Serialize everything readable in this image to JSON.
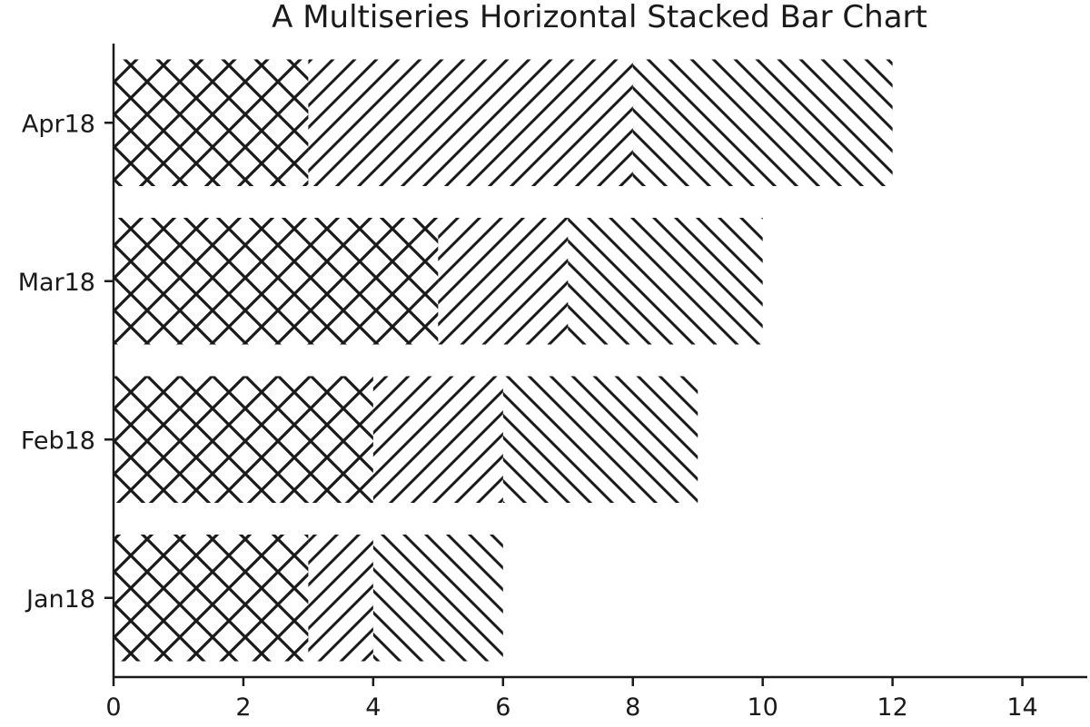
{
  "chart_data": {
    "type": "bar",
    "orientation": "horizontal",
    "stacked": true,
    "title": "A Multiseries Horizontal Stacked Bar Chart",
    "xlabel": "",
    "ylabel": "",
    "categories": [
      "Jan18",
      "Feb18",
      "Mar18",
      "Apr18"
    ],
    "series": [
      {
        "values": [
          3,
          4,
          5,
          3
        ],
        "pattern": "crosshatch",
        "color": "#1a1a1a"
      },
      {
        "values": [
          1,
          2,
          2,
          5
        ],
        "pattern": "diagonal-right",
        "color": "#1a1a1a"
      },
      {
        "values": [
          2,
          3,
          3,
          4
        ],
        "pattern": "diagonal-left",
        "color": "#1a1a1a"
      }
    ],
    "xlim": [
      0,
      15
    ],
    "xticks": [
      0,
      2,
      4,
      6,
      8,
      10,
      12,
      14
    ],
    "grid": false,
    "legend": "none"
  }
}
